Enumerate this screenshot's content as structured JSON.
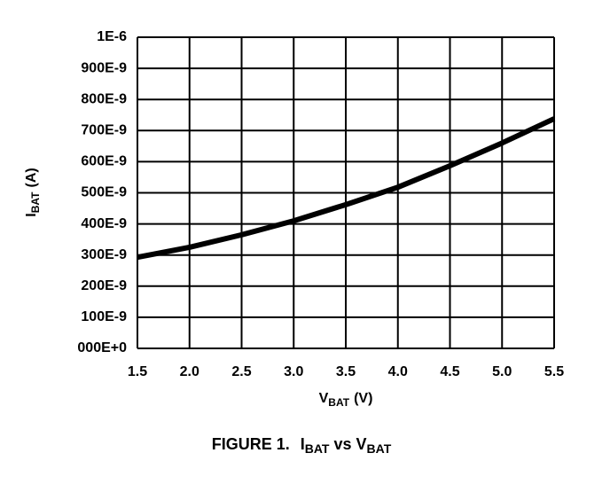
{
  "chart_data": {
    "type": "line",
    "ylabel": {
      "main": "I",
      "sub": "BAT",
      "unit": "(A)"
    },
    "xlabel": {
      "main": "V",
      "sub": "BAT",
      "unit": "(V)"
    },
    "caption": {
      "figure": "FIGURE 1.",
      "a_main": "I",
      "a_sub": "BAT",
      "vs": "vs",
      "b_main": "V",
      "b_sub": "BAT"
    },
    "x": [
      1.5,
      2.0,
      2.5,
      3.0,
      3.5,
      4.0,
      4.5,
      5.0,
      5.5
    ],
    "values": [
      2.93e-07,
      3.25e-07,
      3.65e-07,
      4.1e-07,
      4.62e-07,
      5.18e-07,
      5.87e-07,
      6.6e-07,
      7.38e-07
    ],
    "color": "#000000",
    "xlim": [
      1.5,
      5.5
    ],
    "xticks": [
      1.5,
      {
        "value": 2,
        "label": "2.0"
      },
      2.5,
      {
        "value": 3,
        "label": "3.0"
      },
      3.5,
      {
        "value": 4,
        "label": "4.0"
      },
      4.5,
      {
        "value": 5,
        "label": "5.0"
      },
      5.5
    ],
    "ylim": [
      0,
      1e-06
    ],
    "yticks": [
      {
        "value": 0,
        "label": "000E+0"
      },
      {
        "value": 1e-07,
        "label": "100E-9"
      },
      {
        "value": 2e-07,
        "label": "200E-9"
      },
      {
        "value": 3e-07,
        "label": "300E-9"
      },
      {
        "value": 4e-07,
        "label": "400E-9"
      },
      {
        "value": 5e-07,
        "label": "500E-9"
      },
      {
        "value": 6e-07,
        "label": "600E-9"
      },
      {
        "value": 7e-07,
        "label": "700E-9"
      },
      {
        "value": 8e-07,
        "label": "800E-9"
      },
      {
        "value": 9e-07,
        "label": "900E-9"
      },
      {
        "value": 1e-06,
        "label": "1E-6"
      }
    ],
    "grid": true
  }
}
